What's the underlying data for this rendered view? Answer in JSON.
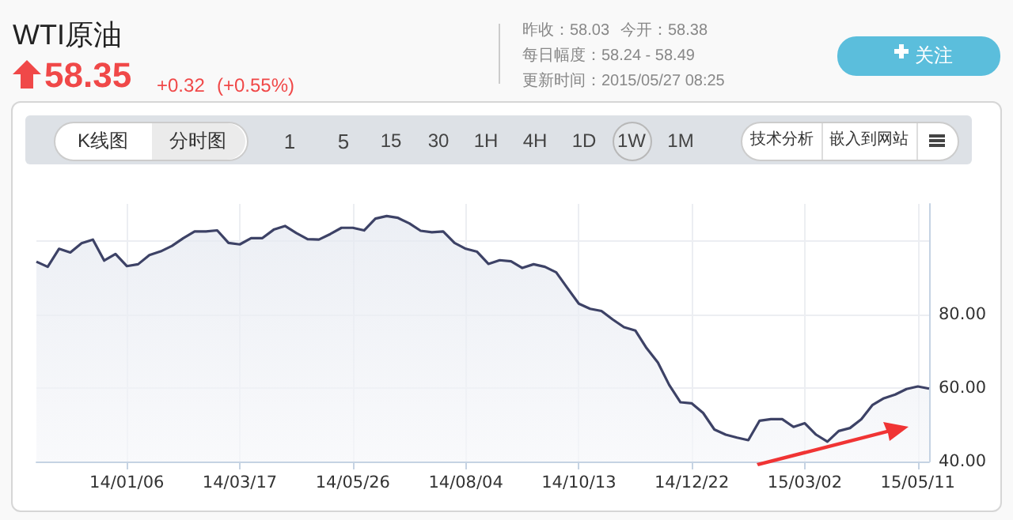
{
  "chart_data": {
    "type": "area",
    "title": "WTI原油",
    "annotations": [
      "58.35",
      "+0.32",
      "(+0.55%)",
      "昨收：58.03",
      "今开：58.38",
      "每日幅度：58.24 - 58.49",
      "更新时间：2015/05/27 08:25",
      "关注",
      "K线图",
      "分时图",
      "1",
      "5",
      "15",
      "30",
      "1H",
      "4H",
      "1D",
      "1W",
      "1M",
      "技术分析",
      "嵌入到网站"
    ],
    "categories": [
      null,
      null,
      null,
      null,
      null,
      null,
      null,
      null,
      "14/01/06",
      null,
      null,
      null,
      null,
      null,
      null,
      null,
      null,
      null,
      "14/03/17",
      null,
      null,
      null,
      null,
      null,
      null,
      null,
      null,
      null,
      "14/05/26",
      null,
      null,
      null,
      null,
      null,
      null,
      null,
      null,
      null,
      "14/08/04",
      null,
      null,
      null,
      null,
      null,
      null,
      null,
      null,
      null,
      "14/10/13",
      null,
      null,
      null,
      null,
      null,
      null,
      null,
      null,
      null,
      "14/12/22",
      null,
      null,
      null,
      null,
      null,
      null,
      null,
      null,
      null,
      "15/03/02",
      null,
      null,
      null,
      null,
      null,
      null,
      null,
      null,
      null,
      "15/05/11",
      null
    ],
    "series": [
      {
        "color": "#3d4266",
        "values": [
          94.3,
          92.9,
          97.8,
          96.8,
          99.3,
          100.3,
          94.6,
          96.4,
          93.1,
          93.6,
          96.1,
          97.1,
          98.6,
          100.7,
          102.5,
          102.5,
          102.8,
          99.4,
          99,
          100.7,
          100.7,
          103,
          104,
          102.1,
          100.4,
          100.3,
          101.8,
          103.5,
          103.5,
          102.8,
          106,
          106.7,
          106.2,
          104.7,
          102.7,
          102.3,
          102.5,
          99.4,
          97.8,
          97,
          93.7,
          94.7,
          94.4,
          92.6,
          93.6,
          92.9,
          91.4,
          87.1,
          82.9,
          81.5,
          80.9,
          78.6,
          76.5,
          75.6,
          70.8,
          66.9,
          60.8,
          56.1,
          55.8,
          53.2,
          48.7,
          47.3,
          46.5,
          45.8,
          51.1,
          51.5,
          51.5,
          49.4,
          50.4,
          47.3,
          45.4,
          48.3,
          49.1,
          51.5,
          55.4,
          57.2,
          58.2,
          59.7,
          60.4,
          59.8
        ]
      }
    ],
    "ylim": [
      40,
      110
    ],
    "yticks": [
      {
        "value": 40,
        "label": "40.00"
      },
      {
        "value": 60,
        "label": "60.00"
      },
      {
        "value": 80,
        "label": "80.00"
      },
      {
        "value": 100,
        "label": null
      }
    ],
    "grid": true
  }
}
